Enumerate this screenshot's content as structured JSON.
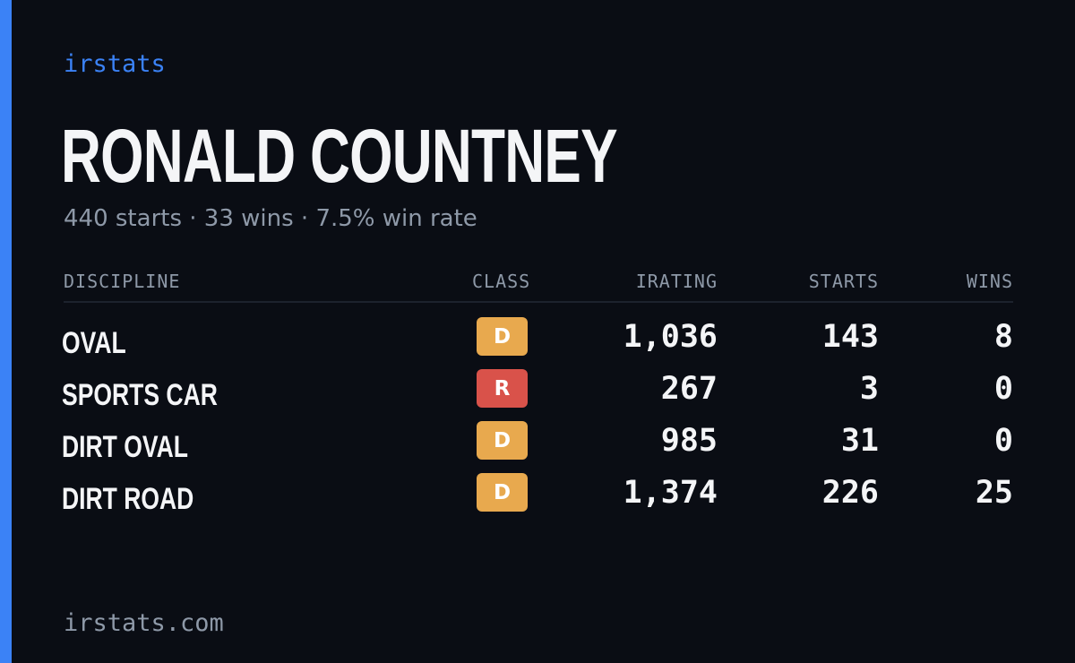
{
  "brand": "irstats",
  "driver": {
    "name": "RONALD COUNTNEY",
    "summary": "440 starts · 33 wins · 7.5% win rate"
  },
  "table": {
    "headers": {
      "discipline": "DISCIPLINE",
      "class": "CLASS",
      "irating": "IRATING",
      "starts": "STARTS",
      "wins": "WINS"
    },
    "rows": [
      {
        "discipline": "OVAL",
        "class": "D",
        "irating": "1,036",
        "starts": "143",
        "wins": "8"
      },
      {
        "discipline": "SPORTS CAR",
        "class": "R",
        "irating": "267",
        "starts": "3",
        "wins": "0"
      },
      {
        "discipline": "DIRT OVAL",
        "class": "D",
        "irating": "985",
        "starts": "31",
        "wins": "0"
      },
      {
        "discipline": "DIRT ROAD",
        "class": "D",
        "irating": "1,374",
        "starts": "226",
        "wins": "25"
      }
    ]
  },
  "class_colors": {
    "D": "#e8a94e",
    "R": "#d9524a"
  },
  "colors": {
    "accent": "#3b82f6",
    "background": "#0a0d14"
  },
  "footer": "irstats.com"
}
